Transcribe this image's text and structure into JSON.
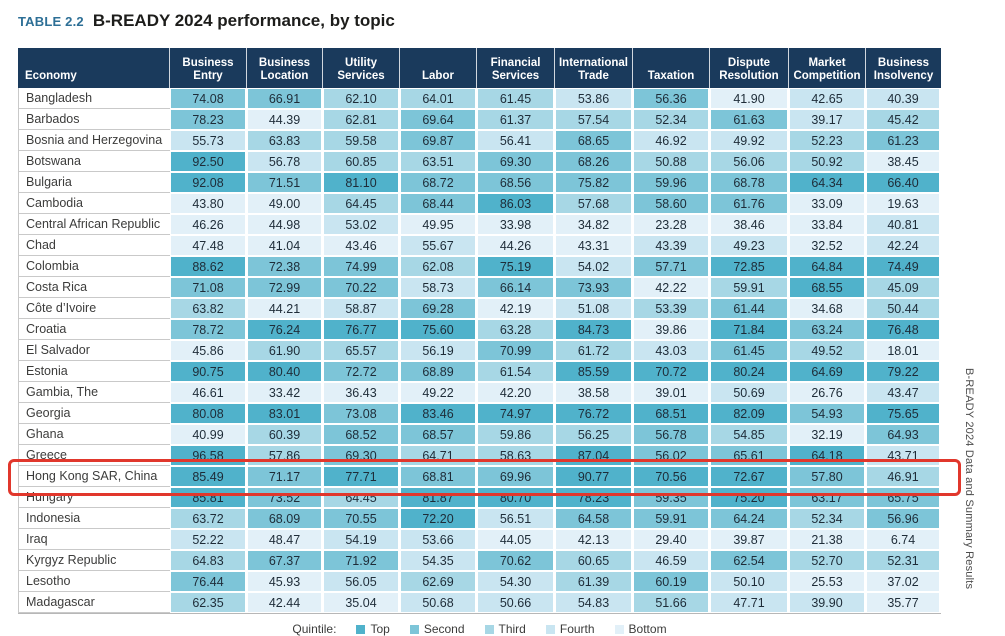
{
  "title": {
    "label": "TABLE 2.2",
    "text": "B-READY 2024 performance, by topic"
  },
  "side_text": "B-READY 2024 Data and Summary Results",
  "colors": {
    "header_bg": "#1a3a5c",
    "label_teal": "#2d6f96",
    "highlight_red": "#e1372c",
    "quintile_top": "#50b2cb",
    "quintile_second": "#7dc5d8",
    "quintile_third": "#a7d7e5",
    "quintile_fourth": "#c9e5f1",
    "quintile_bottom": "#e2f0f8"
  },
  "columns": [
    "Economy",
    "Business Entry",
    "Business Location",
    "Utility Services",
    "Labor",
    "Financial Services",
    "International Trade",
    "Taxation",
    "Dispute Resolution",
    "Market Competition",
    "Business Insolvency"
  ],
  "rows": [
    {
      "economy": "Bangladesh",
      "values": [
        "74.08",
        "66.91",
        "62.10",
        "64.01",
        "61.45",
        "53.86",
        "56.36",
        "41.90",
        "42.65",
        "40.39"
      ],
      "quintiles": [
        2,
        2,
        3,
        3,
        3,
        4,
        2,
        5,
        4,
        4
      ],
      "highlighted": false
    },
    {
      "economy": "Barbados",
      "values": [
        "78.23",
        "44.39",
        "62.81",
        "69.64",
        "61.37",
        "57.54",
        "52.34",
        "61.63",
        "39.17",
        "45.42"
      ],
      "quintiles": [
        2,
        5,
        3,
        2,
        3,
        3,
        3,
        2,
        4,
        3
      ],
      "highlighted": false
    },
    {
      "economy": "Bosnia and Herzegovina",
      "values": [
        "55.73",
        "63.83",
        "59.58",
        "69.87",
        "56.41",
        "68.65",
        "46.92",
        "49.92",
        "52.23",
        "61.23"
      ],
      "quintiles": [
        4,
        3,
        3,
        2,
        4,
        2,
        4,
        4,
        3,
        2
      ],
      "highlighted": false
    },
    {
      "economy": "Botswana",
      "values": [
        "92.50",
        "56.78",
        "60.85",
        "63.51",
        "69.30",
        "68.26",
        "50.88",
        "56.06",
        "50.92",
        "38.45"
      ],
      "quintiles": [
        1,
        4,
        3,
        3,
        2,
        2,
        3,
        3,
        3,
        5
      ],
      "highlighted": false
    },
    {
      "economy": "Bulgaria",
      "values": [
        "92.08",
        "71.51",
        "81.10",
        "68.72",
        "68.56",
        "75.82",
        "59.96",
        "68.78",
        "64.34",
        "66.40"
      ],
      "quintiles": [
        1,
        2,
        1,
        2,
        2,
        2,
        2,
        2,
        1,
        1
      ],
      "highlighted": false
    },
    {
      "economy": "Cambodia",
      "values": [
        "43.80",
        "49.00",
        "64.45",
        "68.44",
        "86.03",
        "57.68",
        "58.60",
        "61.76",
        "33.09",
        "19.63"
      ],
      "quintiles": [
        5,
        5,
        3,
        2,
        1,
        3,
        2,
        2,
        5,
        5
      ],
      "highlighted": false
    },
    {
      "economy": "Central African Republic",
      "values": [
        "46.26",
        "44.98",
        "53.02",
        "49.95",
        "33.98",
        "34.82",
        "23.28",
        "38.46",
        "33.84",
        "40.81"
      ],
      "quintiles": [
        5,
        5,
        4,
        5,
        5,
        5,
        5,
        5,
        5,
        4
      ],
      "highlighted": false
    },
    {
      "economy": "Chad",
      "values": [
        "47.48",
        "41.04",
        "43.46",
        "55.67",
        "44.26",
        "43.31",
        "43.39",
        "49.23",
        "32.52",
        "42.24"
      ],
      "quintiles": [
        5,
        5,
        5,
        4,
        5,
        5,
        4,
        4,
        5,
        4
      ],
      "highlighted": false
    },
    {
      "economy": "Colombia",
      "values": [
        "88.62",
        "72.38",
        "74.99",
        "62.08",
        "75.19",
        "54.02",
        "57.71",
        "72.85",
        "64.84",
        "74.49"
      ],
      "quintiles": [
        1,
        2,
        2,
        3,
        1,
        4,
        2,
        1,
        1,
        1
      ],
      "highlighted": false
    },
    {
      "economy": "Costa Rica",
      "values": [
        "71.08",
        "72.99",
        "70.22",
        "58.73",
        "66.14",
        "73.93",
        "42.22",
        "59.91",
        "68.55",
        "45.09"
      ],
      "quintiles": [
        2,
        2,
        2,
        4,
        2,
        2,
        5,
        3,
        1,
        3
      ],
      "highlighted": false
    },
    {
      "economy": "Côte d’Ivoire",
      "values": [
        "63.82",
        "44.21",
        "58.87",
        "69.28",
        "42.19",
        "51.08",
        "53.39",
        "61.44",
        "34.68",
        "50.44"
      ],
      "quintiles": [
        3,
        5,
        4,
        2,
        5,
        4,
        3,
        2,
        5,
        3
      ],
      "highlighted": false
    },
    {
      "economy": "Croatia",
      "values": [
        "78.72",
        "76.24",
        "76.77",
        "75.60",
        "63.28",
        "84.73",
        "39.86",
        "71.84",
        "63.24",
        "76.48"
      ],
      "quintiles": [
        2,
        1,
        1,
        1,
        3,
        1,
        5,
        1,
        2,
        1
      ],
      "highlighted": false
    },
    {
      "economy": "El Salvador",
      "values": [
        "45.86",
        "61.90",
        "65.57",
        "56.19",
        "70.99",
        "61.72",
        "43.03",
        "61.45",
        "49.52",
        "18.01"
      ],
      "quintiles": [
        5,
        3,
        3,
        4,
        2,
        3,
        4,
        2,
        3,
        5
      ],
      "highlighted": false
    },
    {
      "economy": "Estonia",
      "values": [
        "90.75",
        "80.40",
        "72.72",
        "68.89",
        "61.54",
        "85.59",
        "70.72",
        "80.24",
        "64.69",
        "79.22"
      ],
      "quintiles": [
        1,
        1,
        2,
        2,
        3,
        1,
        1,
        1,
        1,
        1
      ],
      "highlighted": false
    },
    {
      "economy": "Gambia, The",
      "values": [
        "46.61",
        "33.42",
        "36.43",
        "49.22",
        "42.20",
        "38.58",
        "39.01",
        "50.69",
        "26.76",
        "43.47"
      ],
      "quintiles": [
        5,
        5,
        5,
        5,
        5,
        5,
        5,
        4,
        5,
        4
      ],
      "highlighted": false
    },
    {
      "economy": "Georgia",
      "values": [
        "80.08",
        "83.01",
        "73.08",
        "83.46",
        "74.97",
        "76.72",
        "68.51",
        "82.09",
        "54.93",
        "75.65"
      ],
      "quintiles": [
        1,
        1,
        2,
        1,
        1,
        1,
        1,
        1,
        2,
        1
      ],
      "highlighted": false
    },
    {
      "economy": "Ghana",
      "values": [
        "40.99",
        "60.39",
        "68.52",
        "68.57",
        "59.86",
        "56.25",
        "56.78",
        "54.85",
        "32.19",
        "64.93"
      ],
      "quintiles": [
        5,
        3,
        2,
        2,
        3,
        3,
        2,
        3,
        5,
        2
      ],
      "highlighted": false
    },
    {
      "economy": "Greece",
      "values": [
        "96.58",
        "57.86",
        "69.30",
        "64.71",
        "58.63",
        "87.04",
        "56.02",
        "65.61",
        "64.18",
        "43.71"
      ],
      "quintiles": [
        1,
        3,
        2,
        3,
        3,
        1,
        2,
        2,
        1,
        4
      ],
      "highlighted": false
    },
    {
      "economy": "Hong Kong SAR, China",
      "values": [
        "85.49",
        "71.17",
        "77.71",
        "68.81",
        "69.96",
        "90.77",
        "70.56",
        "72.67",
        "57.80",
        "46.91"
      ],
      "quintiles": [
        1,
        2,
        1,
        2,
        2,
        1,
        1,
        1,
        2,
        3
      ],
      "highlighted": true
    },
    {
      "economy": "Hungary",
      "values": [
        "85.81",
        "73.52",
        "64.45",
        "81.87",
        "80.70",
        "78.23",
        "59.35",
        "75.20",
        "63.17",
        "65.75"
      ],
      "quintiles": [
        1,
        2,
        3,
        1,
        1,
        1,
        2,
        1,
        2,
        2
      ],
      "highlighted": false
    },
    {
      "economy": "Indonesia",
      "values": [
        "63.72",
        "68.09",
        "70.55",
        "72.20",
        "56.51",
        "64.58",
        "59.91",
        "64.24",
        "52.34",
        "56.96"
      ],
      "quintiles": [
        3,
        2,
        2,
        1,
        4,
        2,
        2,
        2,
        3,
        2
      ],
      "highlighted": false
    },
    {
      "economy": "Iraq",
      "values": [
        "52.22",
        "48.47",
        "54.19",
        "53.66",
        "44.05",
        "42.13",
        "29.40",
        "39.87",
        "21.38",
        "6.74"
      ],
      "quintiles": [
        4,
        5,
        4,
        4,
        5,
        5,
        5,
        5,
        5,
        5
      ],
      "highlighted": false
    },
    {
      "economy": "Kyrgyz Republic",
      "values": [
        "64.83",
        "67.37",
        "71.92",
        "54.35",
        "70.62",
        "60.65",
        "46.59",
        "62.54",
        "52.70",
        "52.31"
      ],
      "quintiles": [
        3,
        2,
        2,
        4,
        2,
        3,
        4,
        2,
        3,
        3
      ],
      "highlighted": false
    },
    {
      "economy": "Lesotho",
      "values": [
        "76.44",
        "45.93",
        "56.05",
        "62.69",
        "54.30",
        "61.39",
        "60.19",
        "50.10",
        "25.53",
        "37.02"
      ],
      "quintiles": [
        2,
        5,
        4,
        3,
        4,
        3,
        2,
        4,
        5,
        5
      ],
      "highlighted": false
    },
    {
      "economy": "Madagascar",
      "values": [
        "62.35",
        "42.44",
        "35.04",
        "50.68",
        "50.66",
        "54.83",
        "51.66",
        "47.71",
        "39.90",
        "35.77"
      ],
      "quintiles": [
        3,
        5,
        5,
        4,
        4,
        4,
        3,
        4,
        4,
        5
      ],
      "highlighted": false
    }
  ],
  "legend": {
    "label": "Quintile:",
    "items": [
      {
        "label": "Top",
        "quintile": 1
      },
      {
        "label": "Second",
        "quintile": 2
      },
      {
        "label": "Third",
        "quintile": 3
      },
      {
        "label": "Fourth",
        "quintile": 4
      },
      {
        "label": "Bottom",
        "quintile": 5
      }
    ]
  }
}
